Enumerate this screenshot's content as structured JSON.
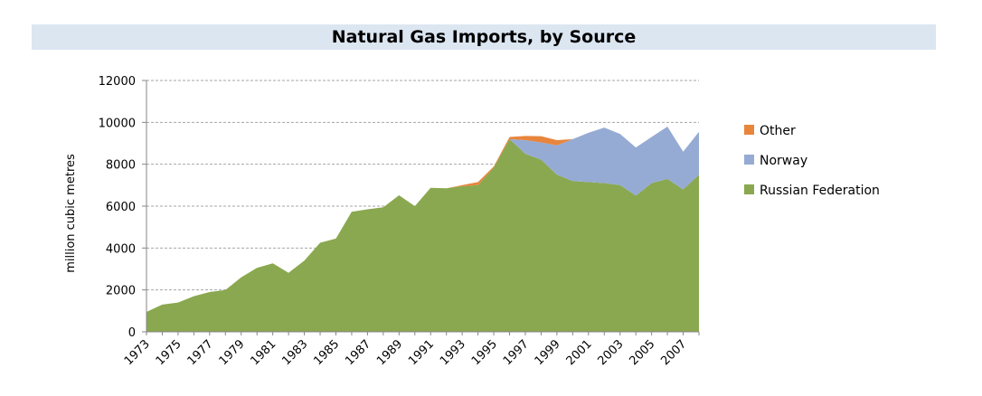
{
  "chart_data": {
    "type": "area",
    "stacked": true,
    "title": "Natural Gas Imports, by Source",
    "ylabel": "million cubic metres",
    "xlabel": "",
    "ylim": [
      0,
      12000
    ],
    "yticks": [
      0,
      2000,
      4000,
      6000,
      8000,
      10000,
      12000
    ],
    "grid": true,
    "legend_position": "right",
    "x": [
      1973,
      1974,
      1975,
      1976,
      1977,
      1978,
      1979,
      1980,
      1981,
      1982,
      1983,
      1984,
      1985,
      1986,
      1987,
      1988,
      1989,
      1990,
      1991,
      1992,
      1993,
      1994,
      1995,
      1996,
      1997,
      1998,
      1999,
      2000,
      2001,
      2002,
      2003,
      2004,
      2005,
      2006,
      2007,
      2008
    ],
    "x_tick_labels": [
      "1973",
      "1975",
      "1977",
      "1979",
      "1981",
      "1983",
      "1985",
      "1987",
      "1989",
      "1991",
      "1993",
      "1995",
      "1997",
      "1999",
      "2001",
      "2003",
      "2005",
      "2007"
    ],
    "series": [
      {
        "name": "Russian Federation",
        "color": "#8aa84f",
        "values": [
          950,
          1300,
          1400,
          1700,
          1900,
          2000,
          2600,
          3050,
          3270,
          2820,
          3400,
          4250,
          4450,
          5730,
          5850,
          5950,
          6520,
          6000,
          6870,
          6850,
          6950,
          7000,
          7850,
          9200,
          8500,
          8220,
          7500,
          7200,
          7150,
          7100,
          7000,
          6500,
          7100,
          7300,
          6800,
          7500
        ]
      },
      {
        "name": "Norway",
        "color": "#95abd4",
        "values": [
          0,
          0,
          0,
          0,
          0,
          0,
          0,
          0,
          0,
          0,
          0,
          0,
          0,
          0,
          0,
          0,
          0,
          0,
          0,
          0,
          0,
          0,
          0,
          0,
          650,
          820,
          1400,
          2000,
          2350,
          2650,
          2450,
          2300,
          2200,
          2500,
          1800,
          2050
        ]
      },
      {
        "name": "Other",
        "color": "#e8853d",
        "values": [
          0,
          0,
          0,
          0,
          0,
          0,
          0,
          0,
          0,
          0,
          0,
          0,
          0,
          0,
          0,
          0,
          0,
          0,
          0,
          0,
          50,
          150,
          50,
          100,
          200,
          300,
          250,
          0,
          0,
          0,
          0,
          0,
          0,
          0,
          0,
          0
        ]
      }
    ],
    "legend_order": [
      "Other",
      "Norway",
      "Russian Federation"
    ]
  }
}
